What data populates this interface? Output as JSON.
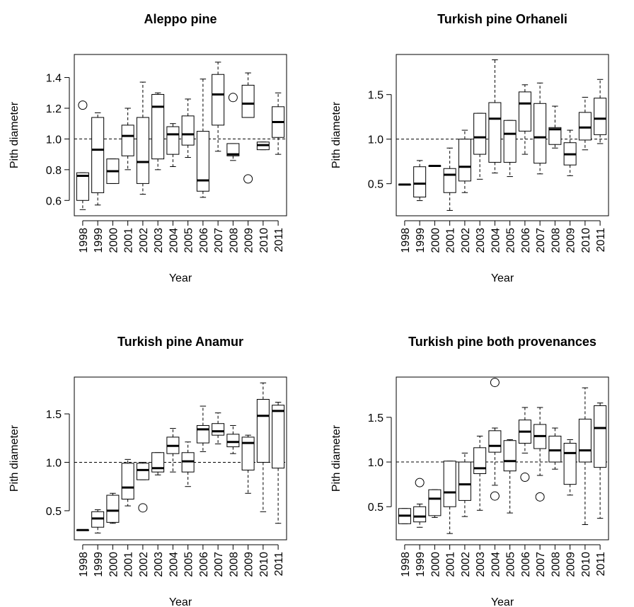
{
  "chart_data": [
    {
      "type": "box",
      "title": "Aleppo pine",
      "xlabel": "Year",
      "ylabel": "Pith diameter",
      "categories": [
        "1998",
        "1999",
        "2000",
        "2001",
        "2002",
        "2003",
        "2004",
        "2005",
        "2006",
        "2007",
        "2008",
        "2009",
        "2010",
        "2011"
      ],
      "whislo": [
        0.54,
        0.57,
        0.71,
        0.8,
        0.64,
        0.8,
        0.82,
        0.88,
        0.62,
        0.92,
        0.86,
        1.14,
        0.93,
        0.9
      ],
      "q1": [
        0.6,
        0.65,
        0.71,
        0.89,
        0.71,
        0.87,
        0.9,
        0.96,
        0.66,
        1.09,
        0.89,
        1.14,
        0.93,
        1.01
      ],
      "med": [
        0.76,
        0.93,
        0.79,
        1.02,
        0.85,
        1.21,
        1.03,
        1.03,
        0.73,
        1.29,
        0.9,
        1.23,
        0.96,
        1.11
      ],
      "q3": [
        0.78,
        1.14,
        0.87,
        1.09,
        1.14,
        1.29,
        1.08,
        1.15,
        1.05,
        1.42,
        0.97,
        1.35,
        0.98,
        1.21
      ],
      "whishi": [
        0.78,
        1.17,
        0.87,
        1.2,
        1.37,
        1.3,
        1.1,
        1.26,
        1.39,
        1.5,
        0.97,
        1.43,
        0.98,
        1.3
      ],
      "outliers": [
        [
          1.22
        ],
        [],
        [],
        [],
        [],
        [],
        [],
        [],
        [],
        [],
        [
          1.27
        ],
        [
          0.74
        ],
        [],
        []
      ],
      "ylim": [
        0.5,
        1.55
      ],
      "yticks": [
        0.6,
        0.8,
        {
          "value": 1,
          "label": "1.0"
        },
        1.2,
        1.4
      ],
      "hline": 1
    },
    {
      "type": "box",
      "title": "Turkish pine Orhaneli",
      "xlabel": "Year",
      "ylabel": "Pith diameter",
      "categories": [
        "1998",
        "1999",
        "2000",
        "2001",
        "2002",
        "2003",
        "2004",
        "2005",
        "2006",
        "2007",
        "2008",
        "2009",
        "2010",
        "2011"
      ],
      "whislo": [
        0.49,
        0.31,
        0.7,
        0.2,
        0.4,
        0.55,
        0.62,
        0.58,
        0.83,
        0.61,
        0.9,
        0.59,
        0.88,
        0.95
      ],
      "q1": [
        0.49,
        0.35,
        0.7,
        0.4,
        0.53,
        0.83,
        0.74,
        0.74,
        1.09,
        0.73,
        0.94,
        0.71,
        0.99,
        1.05
      ],
      "med": [
        0.49,
        0.5,
        0.7,
        0.6,
        0.69,
        1.02,
        1.23,
        1.06,
        1.4,
        1.02,
        1.11,
        0.83,
        1.13,
        1.23
      ],
      "q3": [
        0.49,
        0.69,
        0.7,
        0.67,
        1.0,
        1.29,
        1.41,
        1.21,
        1.53,
        1.4,
        1.13,
        0.96,
        1.3,
        1.46
      ],
      "whishi": [
        0.49,
        0.76,
        0.7,
        0.9,
        1.1,
        1.29,
        1.89,
        1.21,
        1.61,
        1.63,
        1.37,
        1.1,
        1.47,
        1.67
      ],
      "outliers": [
        [],
        [],
        [],
        [],
        [],
        [],
        [],
        [],
        [],
        [],
        [],
        [],
        [],
        []
      ],
      "ylim": [
        0.14,
        1.95
      ],
      "yticks": [
        0.5,
        {
          "value": 1,
          "label": "1.0"
        },
        1.5
      ],
      "hline": 1
    },
    {
      "type": "box",
      "title": "Turkish pine Anamur",
      "xlabel": "Year",
      "ylabel": "Pith diameter",
      "categories": [
        "1998",
        "1999",
        "2000",
        "2001",
        "2002",
        "2003",
        "2004",
        "2005",
        "2006",
        "2007",
        "2008",
        "2009",
        "2010",
        "2011"
      ],
      "whislo": [
        0.3,
        0.27,
        0.37,
        0.55,
        0.82,
        0.87,
        0.9,
        0.75,
        1.11,
        1.19,
        1.09,
        0.68,
        0.49,
        0.37
      ],
      "q1": [
        0.3,
        0.33,
        0.38,
        0.62,
        0.82,
        0.9,
        1.09,
        0.9,
        1.2,
        1.28,
        1.16,
        0.92,
        1.0,
        0.94
      ],
      "med": [
        0.3,
        0.42,
        0.5,
        0.74,
        0.92,
        0.94,
        1.17,
        1.01,
        1.34,
        1.32,
        1.21,
        1.2,
        1.48,
        1.53
      ],
      "q3": [
        0.3,
        0.49,
        0.66,
        0.99,
        0.99,
        1.1,
        1.26,
        1.1,
        1.38,
        1.4,
        1.29,
        1.26,
        1.65,
        1.59
      ],
      "whishi": [
        0.3,
        0.51,
        0.68,
        1.03,
        1.0,
        1.1,
        1.35,
        1.21,
        1.58,
        1.51,
        1.38,
        1.28,
        1.82,
        1.62
      ],
      "outliers": [
        [],
        [],
        [],
        [],
        [
          0.53
        ],
        [],
        [],
        [],
        [],
        [],
        [],
        [],
        [],
        []
      ],
      "ylim": [
        0.2,
        1.88
      ],
      "yticks": [
        0.5,
        {
          "value": 1,
          "label": "1.0"
        },
        1.5
      ],
      "hline": 1
    },
    {
      "type": "box",
      "title": "Turkish pine both provenances",
      "xlabel": "Year",
      "ylabel": "Pith diameter",
      "categories": [
        "1998",
        "1999",
        "2000",
        "2001",
        "2002",
        "2003",
        "2004",
        "2005",
        "2006",
        "2007",
        "2008",
        "2009",
        "2010",
        "2011"
      ],
      "whislo": [
        0.31,
        0.27,
        0.38,
        0.2,
        0.39,
        0.46,
        0.74,
        0.43,
        1.1,
        0.85,
        0.92,
        0.63,
        0.3,
        0.37
      ],
      "q1": [
        0.31,
        0.33,
        0.4,
        0.5,
        0.57,
        0.87,
        1.11,
        0.9,
        1.21,
        1.15,
        1.0,
        0.75,
        1.0,
        0.94
      ],
      "med": [
        0.4,
        0.39,
        0.59,
        0.66,
        0.75,
        0.93,
        1.18,
        1.01,
        1.34,
        1.29,
        1.13,
        1.1,
        1.13,
        1.38
      ],
      "q3": [
        0.48,
        0.5,
        0.69,
        1.01,
        1.0,
        1.16,
        1.35,
        1.24,
        1.47,
        1.42,
        1.29,
        1.21,
        1.48,
        1.63
      ],
      "whishi": [
        0.48,
        0.53,
        0.69,
        1.01,
        1.1,
        1.29,
        1.38,
        1.25,
        1.61,
        1.61,
        1.38,
        1.25,
        1.83,
        1.66
      ],
      "outliers": [
        [],
        [
          0.77
        ],
        [],
        [],
        [],
        [],
        [
          1.89,
          0.62
        ],
        [],
        [
          0.83
        ],
        [
          0.61
        ],
        [],
        [],
        [],
        []
      ],
      "ylim": [
        0.13,
        1.95
      ],
      "yticks": [
        0.5,
        {
          "value": 1,
          "label": "1.0"
        },
        1.5
      ],
      "hline": 1
    }
  ]
}
